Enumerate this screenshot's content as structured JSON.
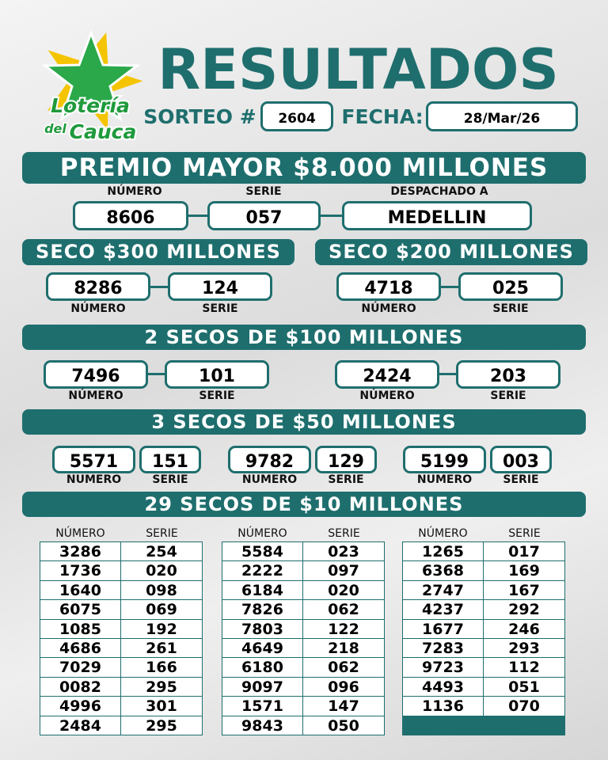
{
  "logo": {
    "line1": "Lotería",
    "line2": "del",
    "line3": "Cauca"
  },
  "header": {
    "title": "RESULTADOS",
    "sorteo_label": "SORTEO #",
    "sorteo": "2604",
    "fecha_label": "FECHA:",
    "fecha": "28/Mar/26"
  },
  "labels": {
    "numero": "NÚMERO",
    "serie": "SERIE"
  },
  "premio_mayor": {
    "title": "PREMIO MAYOR $8.000 MILLONES",
    "despachado_label": "DESPACHADO A",
    "numero": "8606",
    "serie": "057",
    "despachado": "MEDELLIN"
  },
  "secos_mayores": [
    {
      "title": "SECO $300 MILLONES",
      "numero": "8286",
      "serie": "124"
    },
    {
      "title": "SECO $200 MILLONES",
      "numero": "4718",
      "serie": "025"
    }
  ],
  "dos_secos": {
    "title": "2 SECOS DE $100 MILLONES",
    "items": [
      {
        "numero": "7496",
        "serie": "101"
      },
      {
        "numero": "2424",
        "serie": "203"
      }
    ]
  },
  "tres_secos": {
    "title": "3 SECOS DE $50 MILLONES",
    "numero_label": "NUMERO",
    "items": [
      {
        "numero": "5571",
        "serie": "151"
      },
      {
        "numero": "9782",
        "serie": "129"
      },
      {
        "numero": "5199",
        "serie": "003"
      }
    ]
  },
  "veintinueve_secos": {
    "title": "29 SECOS DE $10 MILLONES",
    "columns": [
      [
        [
          "3286",
          "254"
        ],
        [
          "1736",
          "020"
        ],
        [
          "1640",
          "098"
        ],
        [
          "6075",
          "069"
        ],
        [
          "1085",
          "192"
        ],
        [
          "4686",
          "261"
        ],
        [
          "7029",
          "166"
        ],
        [
          "0082",
          "295"
        ],
        [
          "4996",
          "301"
        ],
        [
          "2484",
          "295"
        ]
      ],
      [
        [
          "5584",
          "023"
        ],
        [
          "2222",
          "097"
        ],
        [
          "6184",
          "020"
        ],
        [
          "7826",
          "062"
        ],
        [
          "7803",
          "122"
        ],
        [
          "4649",
          "218"
        ],
        [
          "6180",
          "062"
        ],
        [
          "9097",
          "096"
        ],
        [
          "1571",
          "147"
        ],
        [
          "9843",
          "050"
        ]
      ],
      [
        [
          "1265",
          "017"
        ],
        [
          "6368",
          "169"
        ],
        [
          "2747",
          "167"
        ],
        [
          "4237",
          "292"
        ],
        [
          "1677",
          "246"
        ],
        [
          "7283",
          "293"
        ],
        [
          "9723",
          "112"
        ],
        [
          "4493",
          "051"
        ],
        [
          "1136",
          "070"
        ]
      ]
    ]
  }
}
